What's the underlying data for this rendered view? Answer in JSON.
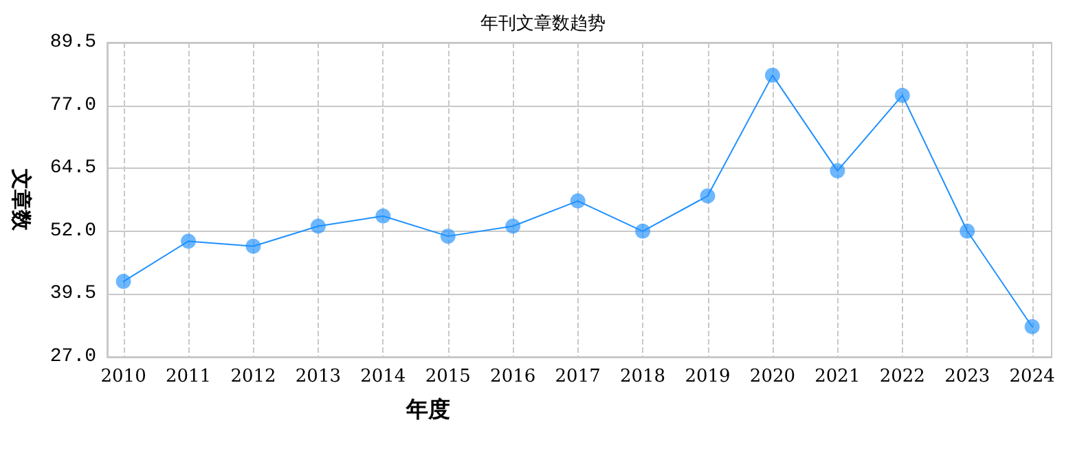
{
  "chart_data": {
    "type": "line",
    "title": "年刊文章数趋势",
    "xlabel": "年度",
    "ylabel": "文章数",
    "x": [
      2010,
      2011,
      2012,
      2013,
      2014,
      2015,
      2016,
      2017,
      2018,
      2019,
      2020,
      2021,
      2022,
      2023,
      2024
    ],
    "series": [
      {
        "color": "#1e90ff",
        "values": [
          42,
          50,
          49,
          53,
          55,
          51,
          53,
          58,
          52,
          59,
          83,
          64,
          79,
          52,
          33
        ]
      }
    ],
    "xlim": [
      2009.75,
      2024.3
    ],
    "xticks": [
      2010,
      2011,
      2012,
      2013,
      2014,
      2015,
      2016,
      2017,
      2018,
      2019,
      2020,
      2021,
      2022,
      2023,
      2024
    ],
    "ylim": [
      27,
      89.5
    ],
    "yticks": [
      {
        "value": 27,
        "label": "27.0"
      },
      39.5,
      {
        "value": 52,
        "label": "52.0"
      },
      64.5,
      {
        "value": 77,
        "label": "77.0"
      },
      89.5
    ],
    "grid": true,
    "marker": "circle",
    "line_style": "solid"
  }
}
